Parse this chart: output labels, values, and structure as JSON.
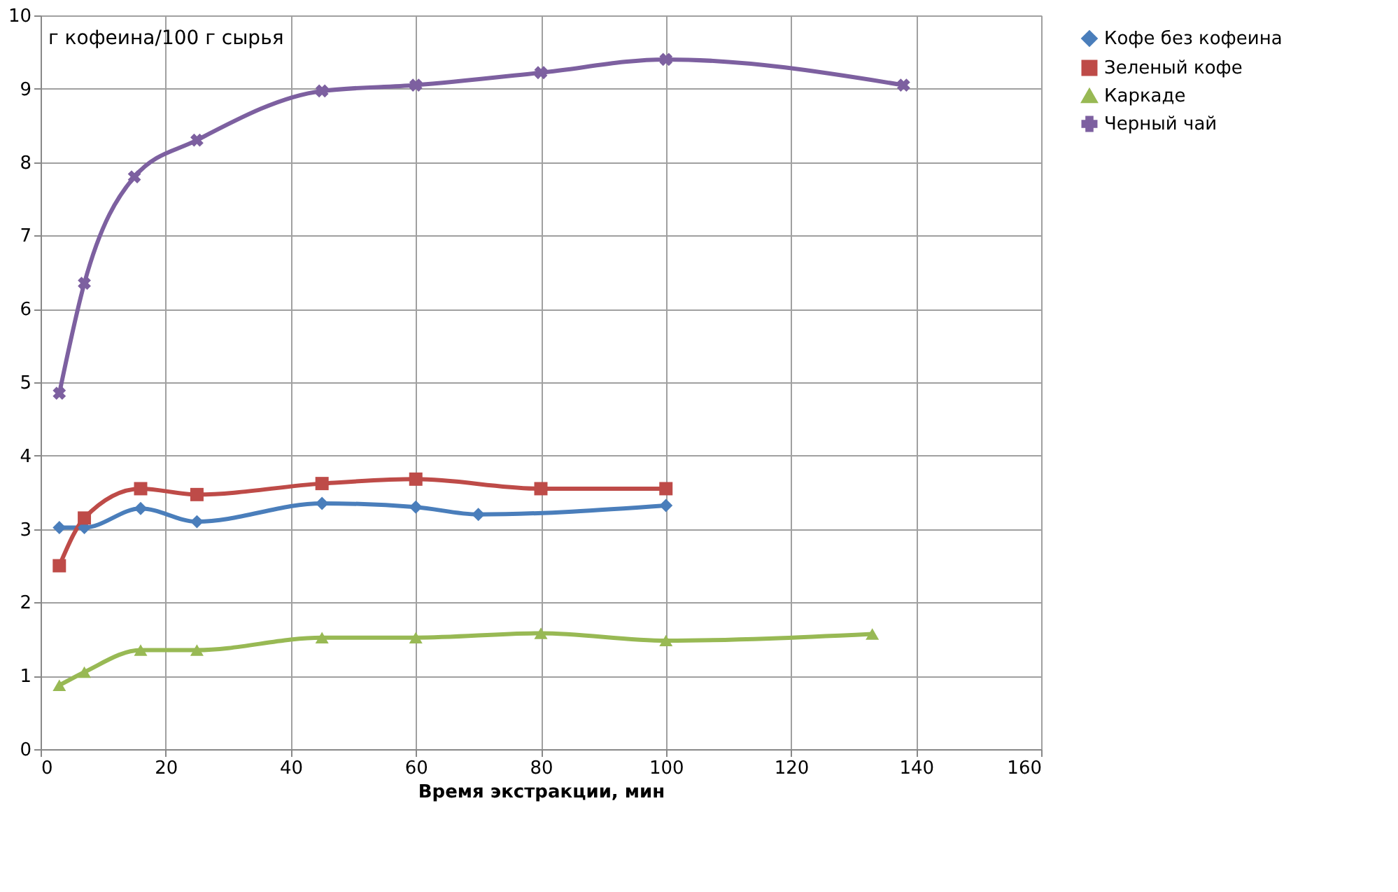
{
  "chart_data": {
    "type": "line",
    "xlabel": "Время экстракции,  мин",
    "ylabel": "г кофеина/100 г сырья",
    "xlim": [
      0,
      160
    ],
    "xticks": [
      0,
      20,
      40,
      60,
      80,
      100,
      120,
      140,
      160
    ],
    "ylim": [
      0,
      10
    ],
    "yticks": [
      0,
      1,
      2,
      3,
      4,
      5,
      6,
      7,
      8,
      9,
      10
    ],
    "grid": true,
    "legend": "right",
    "line_style": "solid",
    "series": [
      {
        "name": "Кофе без кофеина",
        "color": "#4a7ebb",
        "marker": "diamond",
        "x": [
          3,
          7,
          16,
          25,
          45,
          60,
          70,
          100
        ],
        "values": [
          3.02,
          3.02,
          3.28,
          3.1,
          3.35,
          3.3,
          3.2,
          3.32
        ]
      },
      {
        "name": "Зеленый кофе",
        "color": "#be4b48",
        "marker": "square",
        "x": [
          3,
          7,
          16,
          25,
          45,
          60,
          80,
          100
        ],
        "values": [
          2.5,
          3.15,
          3.55,
          3.47,
          3.62,
          3.68,
          3.55,
          3.55
        ]
      },
      {
        "name": "Каркаде",
        "color": "#98b954",
        "marker": "triangle",
        "x": [
          3,
          7,
          16,
          25,
          45,
          60,
          80,
          100,
          133
        ],
        "values": [
          0.87,
          1.05,
          1.35,
          1.35,
          1.52,
          1.52,
          1.58,
          1.48,
          1.57
        ]
      },
      {
        "name": "Черный чай",
        "color": "#7d60a0",
        "marker": "cross",
        "x": [
          3,
          7,
          15,
          25,
          45,
          60,
          80,
          100,
          138
        ],
        "values": [
          4.85,
          6.35,
          7.8,
          8.3,
          8.97,
          9.05,
          9.22,
          9.4,
          9.05
        ]
      }
    ]
  }
}
